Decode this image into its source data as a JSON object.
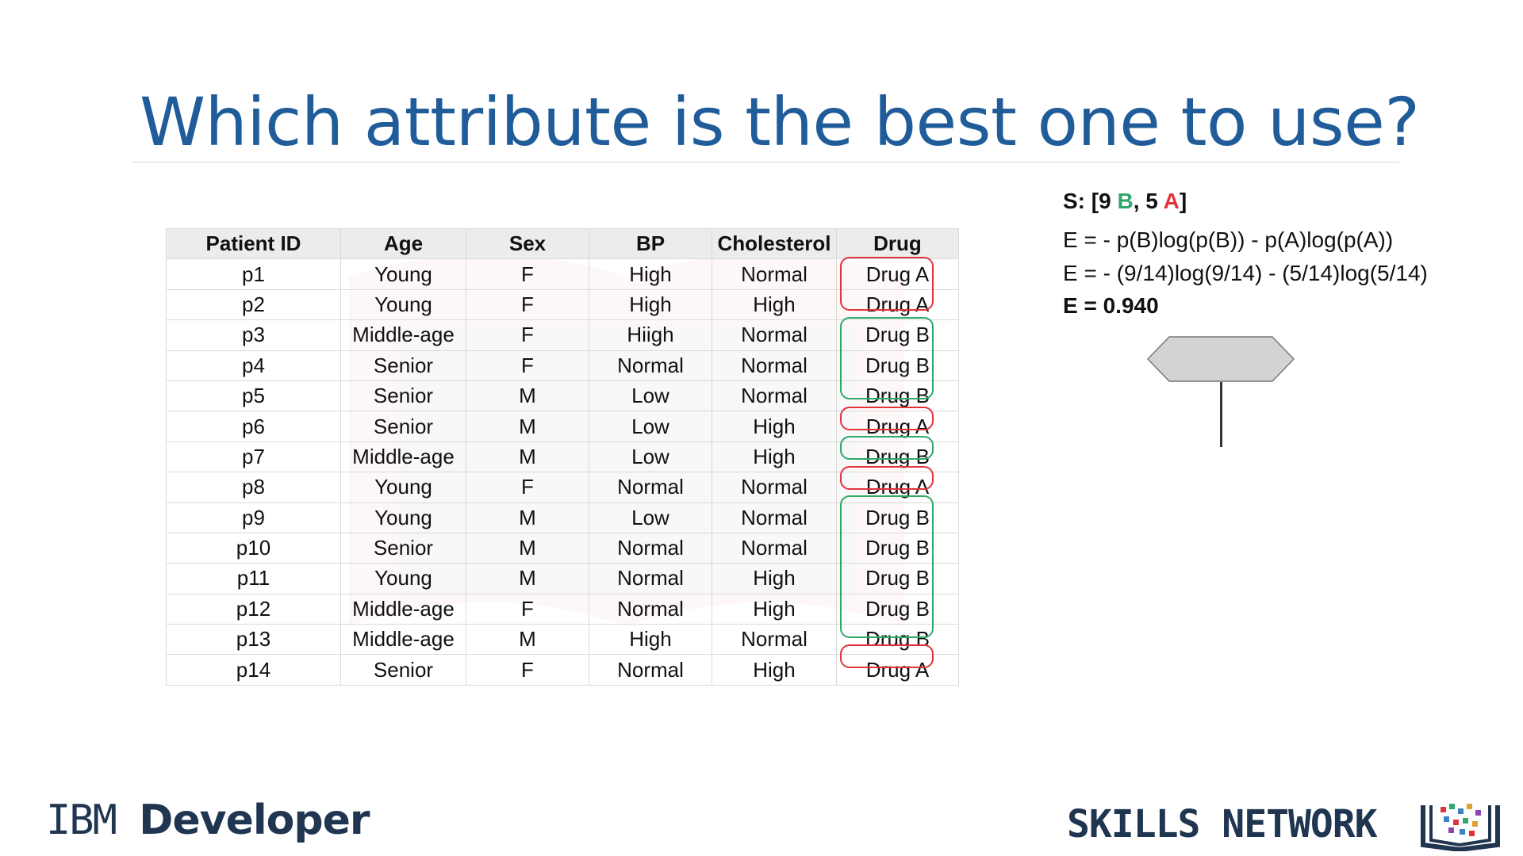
{
  "title": "Which attribute is the best one to use?",
  "table": {
    "headers": [
      "Patient ID",
      "Age",
      "Sex",
      "BP",
      "Cholesterol",
      "Drug"
    ],
    "rows": [
      [
        "p1",
        "Young",
        "F",
        "High",
        "Normal",
        "Drug A"
      ],
      [
        "p2",
        "Young",
        "F",
        "High",
        "High",
        "Drug A"
      ],
      [
        "p3",
        "Middle-age",
        "F",
        "Hiigh",
        "Normal",
        "Drug B"
      ],
      [
        "p4",
        "Senior",
        "F",
        "Normal",
        "Normal",
        "Drug B"
      ],
      [
        "p5",
        "Senior",
        "M",
        "Low",
        "Normal",
        "Drug B"
      ],
      [
        "p6",
        "Senior",
        "M",
        "Low",
        "High",
        "Drug A"
      ],
      [
        "p7",
        "Middle-age",
        "M",
        "Low",
        "High",
        "Drug B"
      ],
      [
        "p8",
        "Young",
        "F",
        "Normal",
        "Normal",
        "Drug A"
      ],
      [
        "p9",
        "Young",
        "M",
        "Low",
        "Normal",
        "Drug B"
      ],
      [
        "p10",
        "Senior",
        "M",
        "Normal",
        "Normal",
        "Drug B"
      ],
      [
        "p11",
        "Young",
        "M",
        "Normal",
        "High",
        "Drug B"
      ],
      [
        "p12",
        "Middle-age",
        "F",
        "Normal",
        "High",
        "Drug B"
      ],
      [
        "p13",
        "Middle-age",
        "M",
        "High",
        "Normal",
        "Drug B"
      ],
      [
        "p14",
        "Senior",
        "F",
        "Normal",
        "High",
        "Drug A"
      ]
    ]
  },
  "summary": {
    "prefix": "S: [9 ",
    "b_letter": "B",
    "middle": ", 5 ",
    "a_letter": "A",
    "suffix": "]"
  },
  "entropy": {
    "formula": "E = - p(B)log(p(B)) - p(A)log(p(A))",
    "substituted": "E = - (9/14)log(9/14) - (5/14)log(5/14)",
    "result": "E = 0.940"
  },
  "colors": {
    "drug_a": "#e0343a",
    "drug_b": "#2fa86a",
    "title": "#1f5c99"
  },
  "footer": {
    "ibm_light": "IBM",
    "ibm_bold": "Developer",
    "skills_network": "SKILLS NETWORK"
  }
}
